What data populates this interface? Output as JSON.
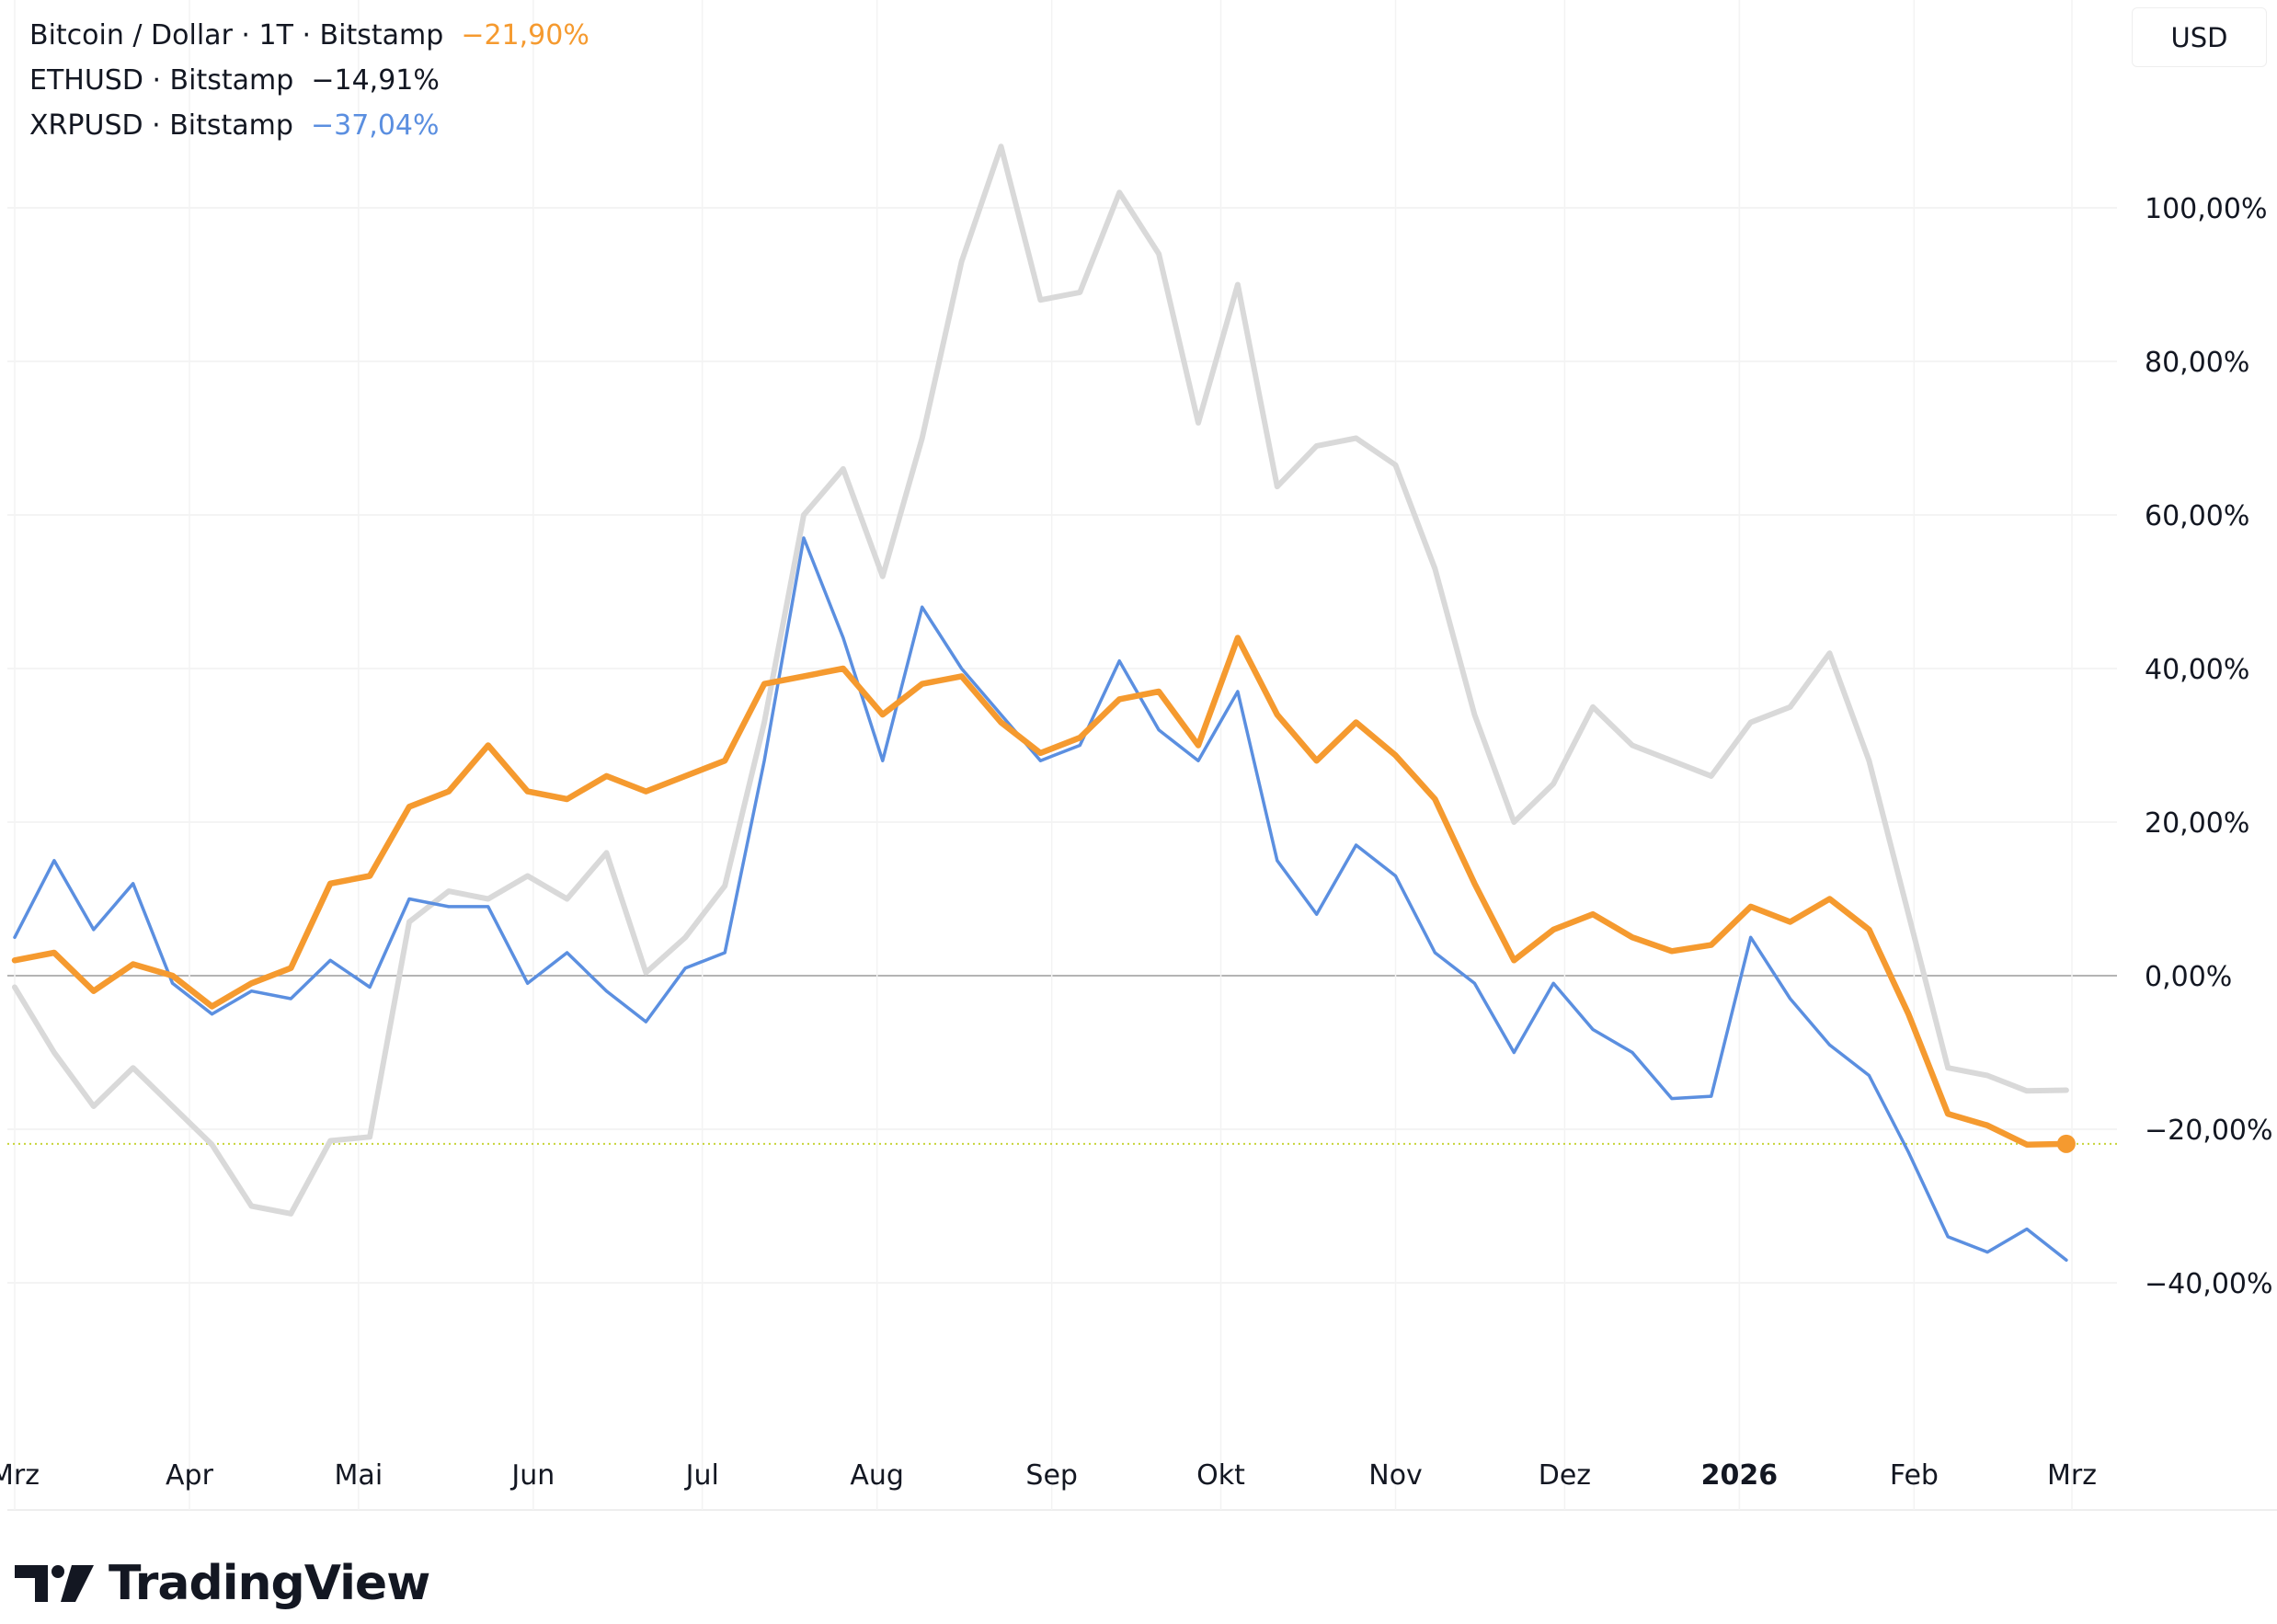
{
  "legend": [
    {
      "label": "Bitcoin / Dollar · 1T · Bitstamp",
      "change": "−21,90%",
      "change_color": "#f59a2f"
    },
    {
      "label": "ETHUSD · Bitstamp",
      "change": "−14,91%",
      "change_color": "#131722"
    },
    {
      "label": "XRPUSD · Bitstamp",
      "change": "−37,04%",
      "change_color": "#5b8fe0"
    }
  ],
  "currency_button": "USD",
  "brand": {
    "name": "TradingView",
    "icon": "tradingview-logo"
  },
  "chart_data": {
    "type": "line",
    "ylabel": "",
    "xlabel": "",
    "ylim": [
      -69,
      127
    ],
    "xlim": [
      "2025-03-01",
      "2026-03-01"
    ],
    "grid": true,
    "legend_placement": "top-left",
    "y_ticks": [
      {
        "value": 100,
        "label": "100,00%"
      },
      {
        "value": 80,
        "label": "80,00%"
      },
      {
        "value": 60,
        "label": "60,00%"
      },
      {
        "value": 40,
        "label": "40,00%"
      },
      {
        "value": 20,
        "label": "20,00%"
      },
      {
        "value": 0,
        "label": "0,00%"
      },
      {
        "value": -20,
        "label": "−20,00%"
      },
      {
        "value": -40,
        "label": "−40,00%"
      }
    ],
    "x_ticks": [
      {
        "date": "2025-03-01",
        "label": "Mrz",
        "bold": false
      },
      {
        "date": "2025-04-01",
        "label": "Apr",
        "bold": false
      },
      {
        "date": "2025-05-01",
        "label": "Mai",
        "bold": false
      },
      {
        "date": "2025-06-01",
        "label": "Jun",
        "bold": false
      },
      {
        "date": "2025-07-01",
        "label": "Jul",
        "bold": false
      },
      {
        "date": "2025-08-01",
        "label": "Aug",
        "bold": false
      },
      {
        "date": "2025-09-01",
        "label": "Sep",
        "bold": false
      },
      {
        "date": "2025-10-01",
        "label": "Okt",
        "bold": false
      },
      {
        "date": "2025-11-01",
        "label": "Nov",
        "bold": false
      },
      {
        "date": "2025-12-01",
        "label": "Dez",
        "bold": false
      },
      {
        "date": "2026-01-01",
        "label": "2026",
        "bold": true
      },
      {
        "date": "2026-02-01",
        "label": "Feb",
        "bold": false
      },
      {
        "date": "2026-03-01",
        "label": "Mrz",
        "bold": false
      }
    ],
    "reference_line": {
      "value": -21.9,
      "color": "#c8d43a",
      "style": "dotted"
    },
    "dates": [
      "2025-03-01",
      "2025-03-08",
      "2025-03-15",
      "2025-03-22",
      "2025-03-29",
      "2025-04-05",
      "2025-04-12",
      "2025-04-19",
      "2025-04-26",
      "2025-05-03",
      "2025-05-10",
      "2025-05-17",
      "2025-05-24",
      "2025-05-31",
      "2025-06-07",
      "2025-06-14",
      "2025-06-21",
      "2025-06-28",
      "2025-07-05",
      "2025-07-12",
      "2025-07-19",
      "2025-07-26",
      "2025-08-02",
      "2025-08-09",
      "2025-08-16",
      "2025-08-23",
      "2025-08-30",
      "2025-09-06",
      "2025-09-13",
      "2025-09-20",
      "2025-09-27",
      "2025-10-04",
      "2025-10-11",
      "2025-10-18",
      "2025-10-25",
      "2025-11-01",
      "2025-11-08",
      "2025-11-15",
      "2025-11-22",
      "2025-11-29",
      "2025-12-06",
      "2025-12-13",
      "2025-12-20",
      "2025-12-27",
      "2026-01-03",
      "2026-01-10",
      "2026-01-17",
      "2026-01-24",
      "2026-01-31",
      "2026-02-07",
      "2026-02-14",
      "2026-02-21",
      "2026-02-28"
    ],
    "series": [
      {
        "name": "ETHUSD · Bitstamp",
        "color": "#d9d9d9",
        "values": [
          -1.5,
          -10,
          -17,
          -12,
          -17,
          -22,
          -30,
          -31,
          -21.5,
          -21,
          7,
          11,
          10,
          13,
          10,
          16,
          0.4,
          5,
          11.7,
          33,
          60,
          66,
          52,
          70,
          93,
          108,
          88,
          89,
          102,
          94,
          72,
          90,
          63.7,
          69,
          70,
          66.5,
          53,
          34,
          20,
          25,
          35,
          30,
          28,
          26,
          33,
          35,
          42,
          28,
          8,
          -12,
          -13,
          -15,
          -14.91
        ]
      },
      {
        "name": "XRPUSD · Bitstamp",
        "color": "#5b8fe0",
        "values": [
          5,
          15,
          6,
          12,
          -1,
          -5,
          -2,
          -3,
          2,
          -1.5,
          10,
          9,
          9,
          -1,
          3,
          -2,
          -6,
          1,
          3,
          28,
          57,
          44,
          28,
          48,
          40,
          34,
          28,
          30,
          41,
          32,
          28,
          37,
          15,
          8,
          17,
          13,
          3,
          -1,
          -10,
          -1,
          -7,
          -10,
          -16,
          -15.7,
          5,
          -3,
          -9,
          -13,
          -23,
          -34,
          -36,
          -33,
          -37.04
        ]
      },
      {
        "name": "Bitcoin / Dollar · 1T · Bitstamp",
        "color": "#f59a2f",
        "values": [
          2,
          3,
          -2,
          1.5,
          0,
          -4,
          -1,
          1,
          12,
          13,
          22,
          24,
          30,
          24,
          23,
          26,
          24,
          26,
          28,
          38,
          39,
          40,
          34,
          38,
          39,
          33,
          29,
          31,
          36,
          37,
          30,
          44,
          34,
          28,
          33,
          28.7,
          23,
          12,
          2,
          6,
          8,
          5,
          3.2,
          4,
          9,
          7,
          10,
          6,
          -5,
          -18,
          -19.5,
          -22,
          -21.9
        ]
      }
    ]
  }
}
